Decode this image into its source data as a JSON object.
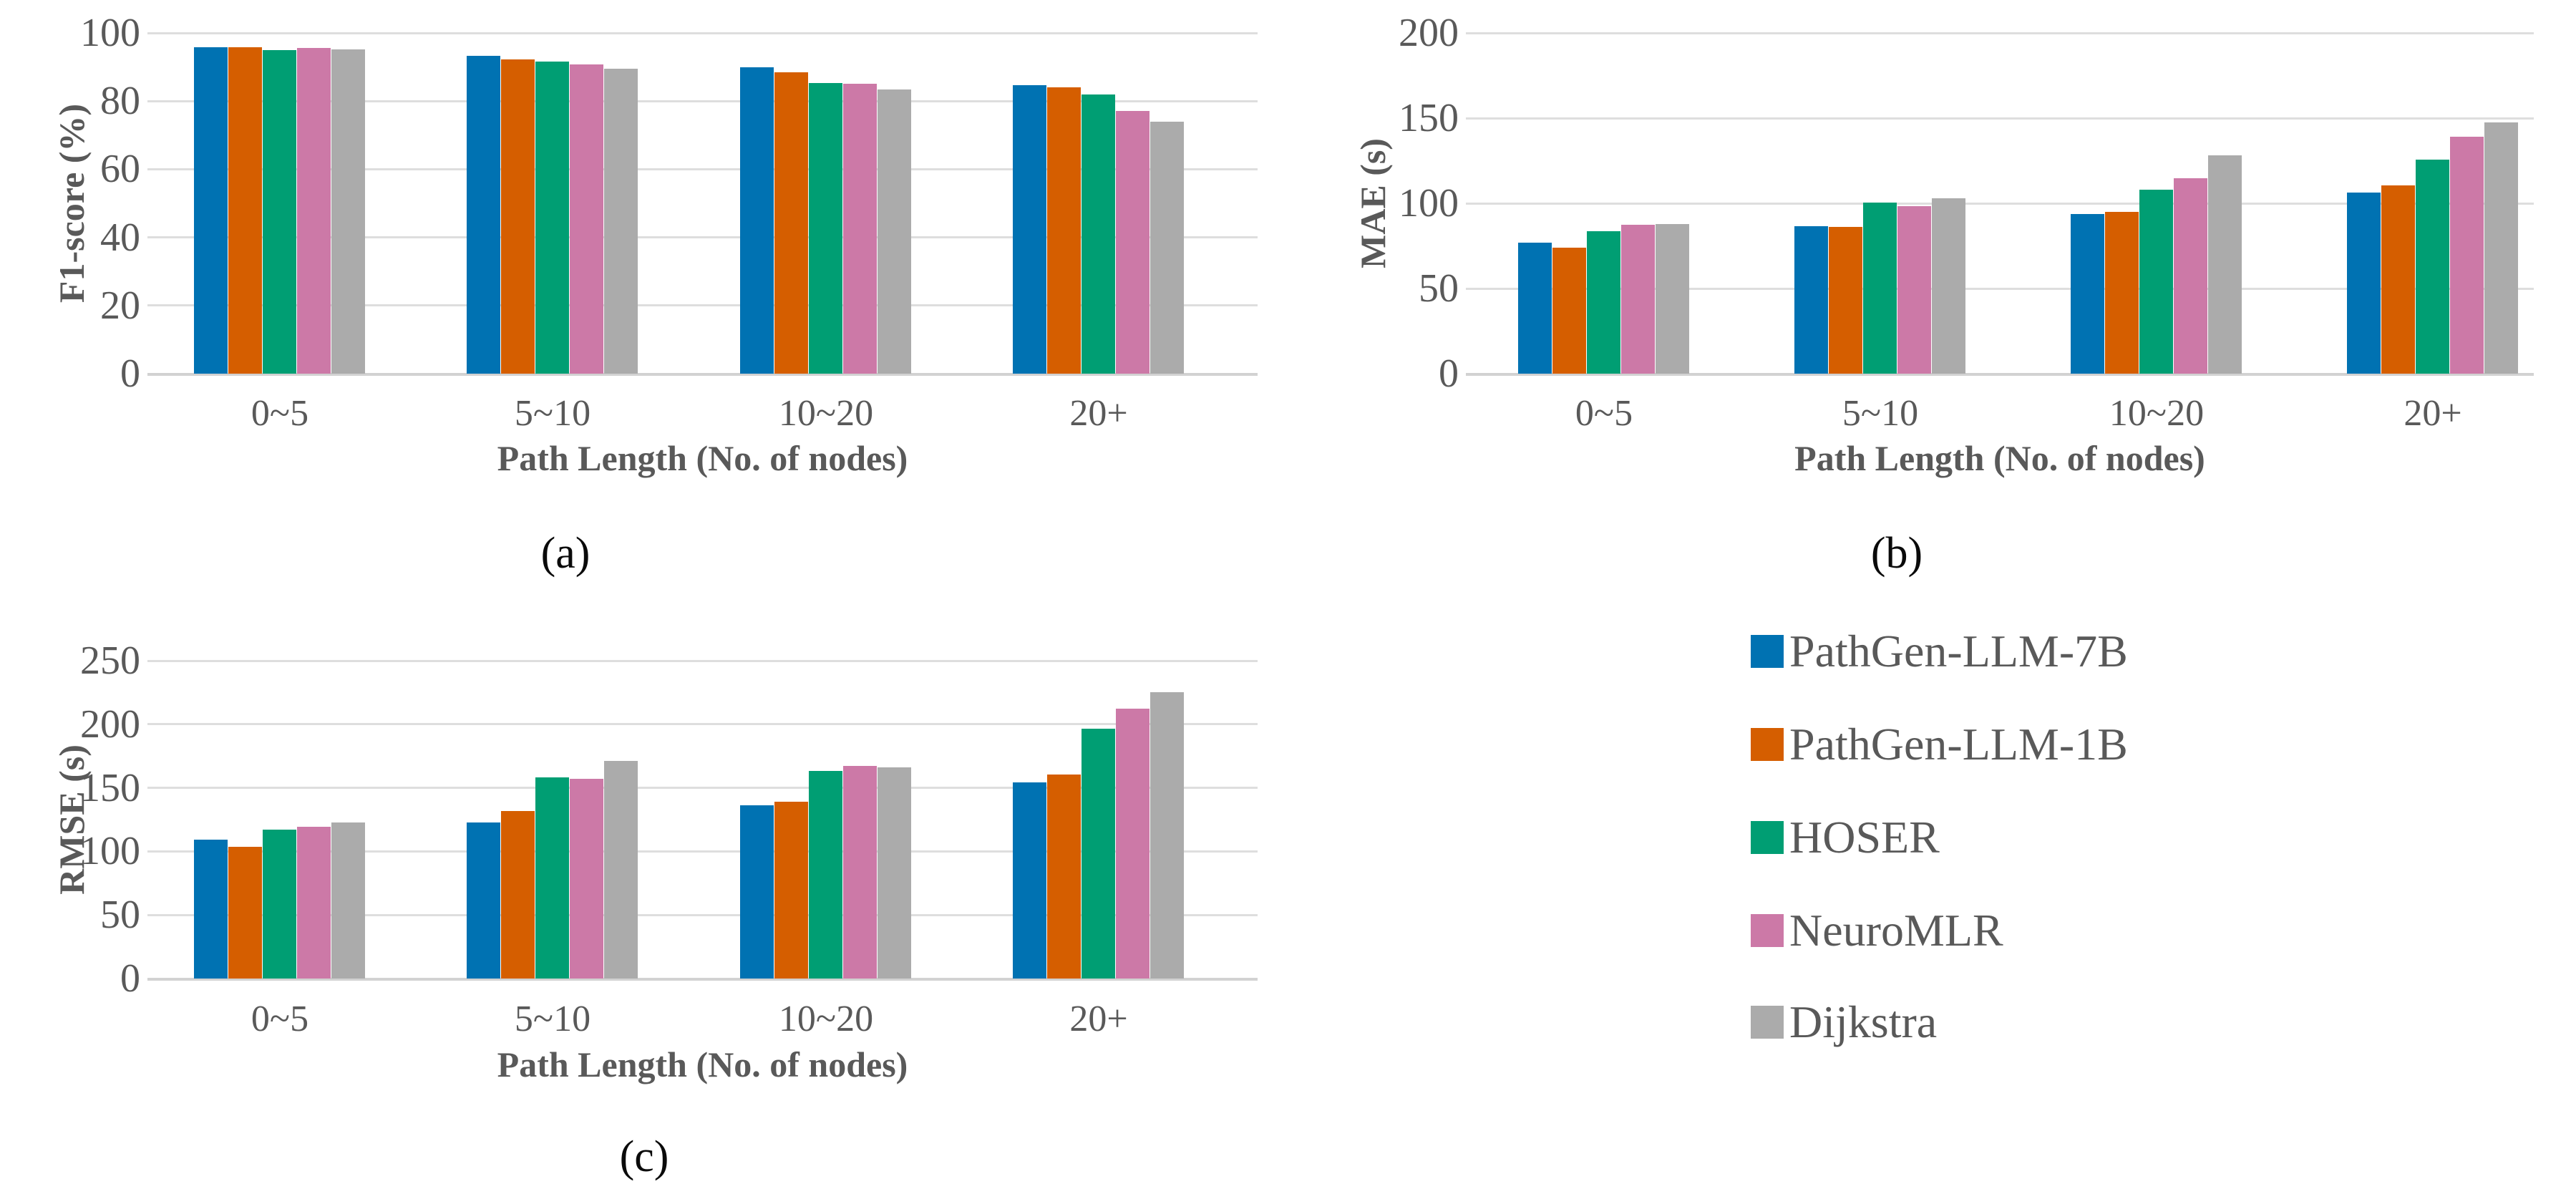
{
  "figure": {
    "x_axis_title": "Path Length (No. of nodes)",
    "categories": [
      "0~5",
      "5~10",
      "10~20",
      "20+"
    ]
  },
  "legend": {
    "items": [
      {
        "label": "PathGen-LLM-7B",
        "color": "#0072B2"
      },
      {
        "label": "PathGen-LLM-1B",
        "color": "#D55E00"
      },
      {
        "label": "HOSER",
        "color": "#009E73"
      },
      {
        "label": "NeuroMLR",
        "color": "#CC79A7"
      },
      {
        "label": "Dijkstra",
        "color": "#ABABAB"
      }
    ]
  },
  "chart_data": [
    {
      "id": "a",
      "type": "bar",
      "panel_label": "(a)",
      "title": "",
      "ylabel": "F1-score (%)",
      "xlabel": "Path Length (No. of nodes)",
      "ylim": [
        0,
        100
      ],
      "yticks": [
        0,
        20,
        40,
        60,
        80,
        100
      ],
      "grid": true,
      "categories": [
        "0~5",
        "5~10",
        "10~20",
        "20+"
      ],
      "series": [
        {
          "name": "PathGen-LLM-7B",
          "color": "#0072B2",
          "values": [
            95.9,
            93.2,
            89.9,
            84.7
          ]
        },
        {
          "name": "PathGen-LLM-1B",
          "color": "#D55E00",
          "values": [
            95.9,
            92.3,
            88.5,
            84.1
          ]
        },
        {
          "name": "HOSER",
          "color": "#009E73",
          "values": [
            95.0,
            91.5,
            85.2,
            82.0
          ]
        },
        {
          "name": "NeuroMLR",
          "color": "#CC79A7",
          "values": [
            95.5,
            90.8,
            85.0,
            77.1
          ]
        },
        {
          "name": "Dijkstra",
          "color": "#ABABAB",
          "values": [
            95.1,
            89.6,
            83.3,
            73.9
          ]
        }
      ]
    },
    {
      "id": "b",
      "type": "bar",
      "panel_label": "(b)",
      "title": "",
      "ylabel": "MAE (s)",
      "xlabel": "Path Length (No. of nodes)",
      "ylim": [
        0,
        200
      ],
      "yticks": [
        0,
        50,
        100,
        150,
        200
      ],
      "grid": true,
      "categories": [
        "0~5",
        "5~10",
        "10~20",
        "20+"
      ],
      "series": [
        {
          "name": "PathGen-LLM-7B",
          "color": "#0072B2",
          "values": [
            77.0,
            86.5,
            93.5,
            106.5
          ]
        },
        {
          "name": "PathGen-LLM-1B",
          "color": "#D55E00",
          "values": [
            74.0,
            86.0,
            95.0,
            110.5
          ]
        },
        {
          "name": "HOSER",
          "color": "#009E73",
          "values": [
            83.5,
            100.5,
            108.0,
            125.5
          ]
        },
        {
          "name": "NeuroMLR",
          "color": "#CC79A7",
          "values": [
            87.5,
            98.5,
            114.5,
            139.0
          ]
        },
        {
          "name": "Dijkstra",
          "color": "#ABABAB",
          "values": [
            88.0,
            103.0,
            128.0,
            147.5
          ]
        }
      ]
    },
    {
      "id": "c",
      "type": "bar",
      "panel_label": "(c)",
      "title": "",
      "ylabel": "RMSE (s)",
      "xlabel": "Path Length (No. of nodes)",
      "ylim": [
        0,
        250
      ],
      "yticks": [
        0,
        50,
        100,
        150,
        200,
        250
      ],
      "grid": true,
      "categories": [
        "0~5",
        "5~10",
        "10~20",
        "20+"
      ],
      "series": [
        {
          "name": "PathGen-LLM-7B",
          "color": "#0072B2",
          "values": [
            109.5,
            123.0,
            136.5,
            154.0
          ]
        },
        {
          "name": "PathGen-LLM-1B",
          "color": "#D55E00",
          "values": [
            103.5,
            131.5,
            139.0,
            160.5
          ]
        },
        {
          "name": "HOSER",
          "color": "#009E73",
          "values": [
            117.0,
            158.0,
            163.5,
            196.5
          ]
        },
        {
          "name": "NeuroMLR",
          "color": "#CC79A7",
          "values": [
            119.5,
            157.0,
            167.0,
            212.0
          ]
        },
        {
          "name": "Dijkstra",
          "color": "#ABABAB",
          "values": [
            123.0,
            171.0,
            166.0,
            225.0
          ]
        }
      ]
    }
  ]
}
